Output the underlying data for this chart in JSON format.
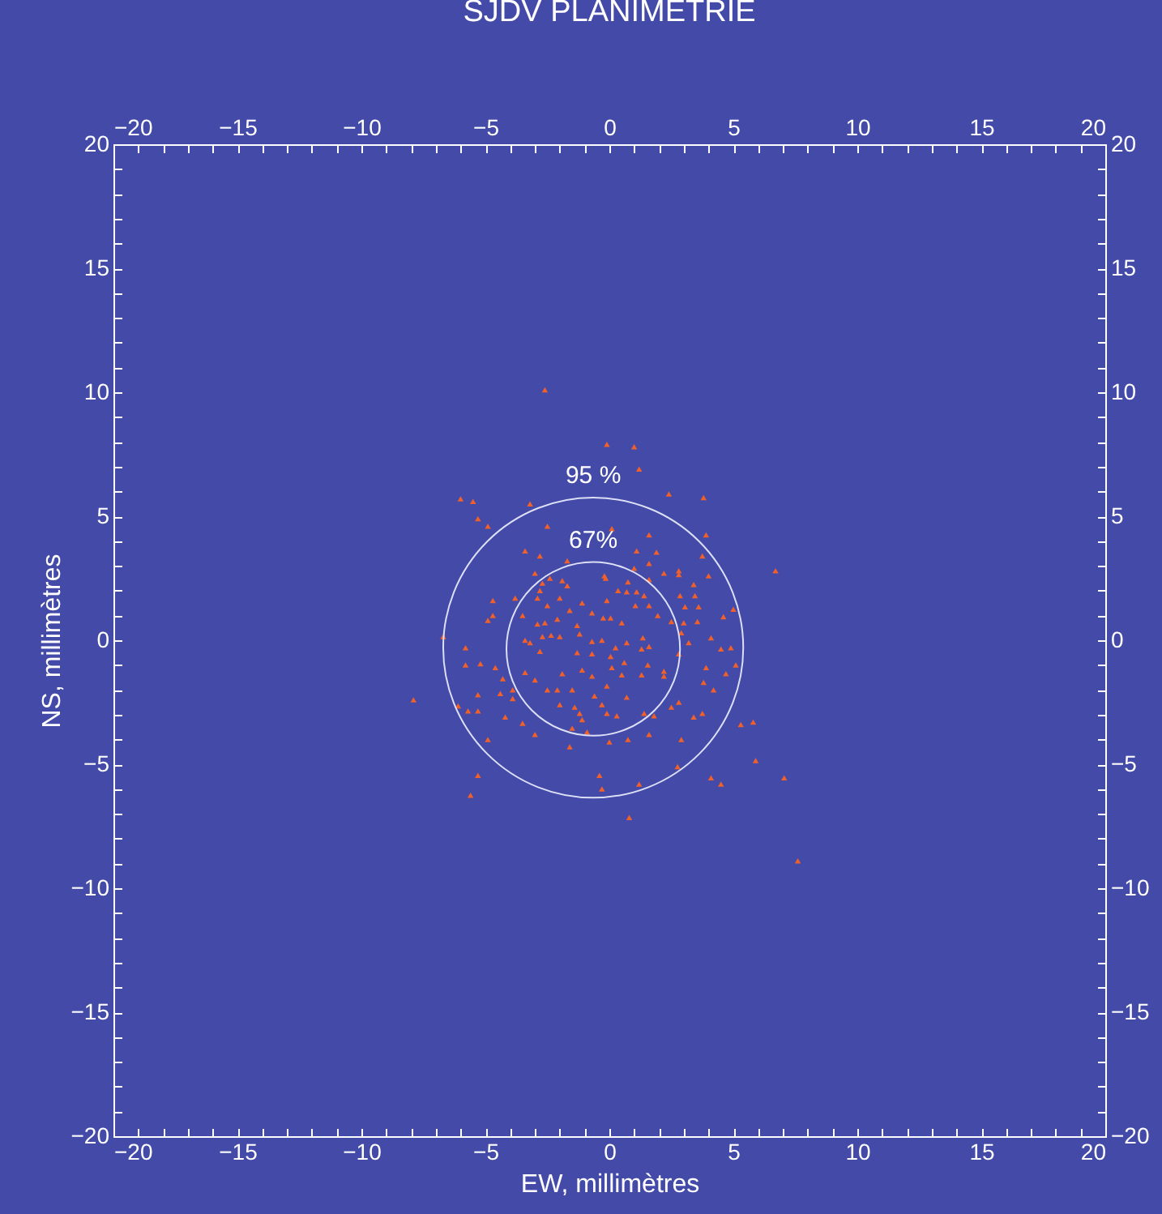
{
  "chart_data": {
    "type": "scatter",
    "title": "SJDV PLANIMETRIE",
    "xlabel": "EW, millimètres",
    "ylabel": "NS, millimètres",
    "marker": "triangle",
    "grid": false,
    "annotations": [
      "95 %",
      "67%"
    ],
    "xlim": [
      -20,
      20
    ],
    "ylim": [
      -20,
      20
    ],
    "x2lim": [
      -20,
      20
    ],
    "y2lim": [
      -20,
      20
    ],
    "xticks": [
      -20,
      {
        "value": -19,
        "label": null
      },
      {
        "value": -18,
        "label": null
      },
      {
        "value": -17,
        "label": null
      },
      {
        "value": -16,
        "label": null
      },
      -15,
      {
        "value": -14,
        "label": null
      },
      {
        "value": -13,
        "label": null
      },
      {
        "value": -12,
        "label": null
      },
      {
        "value": -11,
        "label": null
      },
      -10,
      {
        "value": -9,
        "label": null
      },
      {
        "value": -8,
        "label": null
      },
      {
        "value": -7,
        "label": null
      },
      {
        "value": -6,
        "label": null
      },
      -5,
      {
        "value": -4,
        "label": null
      },
      {
        "value": -3,
        "label": null
      },
      {
        "value": -2,
        "label": null
      },
      {
        "value": -1,
        "label": null
      },
      0,
      {
        "value": 1,
        "label": null
      },
      {
        "value": 2,
        "label": null
      },
      {
        "value": 3,
        "label": null
      },
      {
        "value": 4,
        "label": null
      },
      5,
      {
        "value": 6,
        "label": null
      },
      {
        "value": 7,
        "label": null
      },
      {
        "value": 8,
        "label": null
      },
      {
        "value": 9,
        "label": null
      },
      10,
      {
        "value": 11,
        "label": null
      },
      {
        "value": 12,
        "label": null
      },
      {
        "value": 13,
        "label": null
      },
      {
        "value": 14,
        "label": null
      },
      15,
      {
        "value": 16,
        "label": null
      },
      {
        "value": 17,
        "label": null
      },
      {
        "value": 18,
        "label": null
      },
      {
        "value": 19,
        "label": null
      },
      20
    ],
    "yticks": [
      -20,
      {
        "value": -19,
        "label": null
      },
      {
        "value": -18,
        "label": null
      },
      {
        "value": -17,
        "label": null
      },
      {
        "value": -16,
        "label": null
      },
      -15,
      {
        "value": -14,
        "label": null
      },
      {
        "value": -13,
        "label": null
      },
      {
        "value": -12,
        "label": null
      },
      {
        "value": -11,
        "label": null
      },
      -10,
      {
        "value": -9,
        "label": null
      },
      {
        "value": -8,
        "label": null
      },
      {
        "value": -7,
        "label": null
      },
      {
        "value": -6,
        "label": null
      },
      -5,
      {
        "value": -4,
        "label": null
      },
      {
        "value": -3,
        "label": null
      },
      {
        "value": -2,
        "label": null
      },
      {
        "value": -1,
        "label": null
      },
      0,
      {
        "value": 1,
        "label": null
      },
      {
        "value": 2,
        "label": null
      },
      {
        "value": 3,
        "label": null
      },
      {
        "value": 4,
        "label": null
      },
      5,
      {
        "value": 6,
        "label": null
      },
      {
        "value": 7,
        "label": null
      },
      {
        "value": 8,
        "label": null
      },
      {
        "value": 9,
        "label": null
      },
      10,
      {
        "value": 11,
        "label": null
      },
      {
        "value": 12,
        "label": null
      },
      {
        "value": 13,
        "label": null
      },
      {
        "value": 14,
        "label": null
      },
      15,
      {
        "value": 16,
        "label": null
      },
      {
        "value": 17,
        "label": null
      },
      {
        "value": 18,
        "label": null
      },
      {
        "value": 19,
        "label": null
      },
      20
    ],
    "x2ticks": [
      -20,
      {
        "value": -19,
        "label": null
      },
      {
        "value": -18,
        "label": null
      },
      {
        "value": -17,
        "label": null
      },
      {
        "value": -16,
        "label": null
      },
      -15,
      {
        "value": -14,
        "label": null
      },
      {
        "value": -13,
        "label": null
      },
      {
        "value": -12,
        "label": null
      },
      {
        "value": -11,
        "label": null
      },
      -10,
      {
        "value": -9,
        "label": null
      },
      {
        "value": -8,
        "label": null
      },
      {
        "value": -7,
        "label": null
      },
      {
        "value": -6,
        "label": null
      },
      -5,
      {
        "value": -4,
        "label": null
      },
      {
        "value": -3,
        "label": null
      },
      {
        "value": -2,
        "label": null
      },
      {
        "value": -1,
        "label": null
      },
      0,
      {
        "value": 1,
        "label": null
      },
      {
        "value": 2,
        "label": null
      },
      {
        "value": 3,
        "label": null
      },
      {
        "value": 4,
        "label": null
      },
      5,
      {
        "value": 6,
        "label": null
      },
      {
        "value": 7,
        "label": null
      },
      {
        "value": 8,
        "label": null
      },
      {
        "value": 9,
        "label": null
      },
      10,
      {
        "value": 11,
        "label": null
      },
      {
        "value": 12,
        "label": null
      },
      {
        "value": 13,
        "label": null
      },
      {
        "value": 14,
        "label": null
      },
      15,
      {
        "value": 16,
        "label": null
      },
      {
        "value": 17,
        "label": null
      },
      {
        "value": 18,
        "label": null
      },
      {
        "value": 19,
        "label": null
      },
      20
    ],
    "y2ticks": [
      -20,
      {
        "value": -19,
        "label": null
      },
      {
        "value": -18,
        "label": null
      },
      {
        "value": -17,
        "label": null
      },
      {
        "value": -16,
        "label": null
      },
      -15,
      {
        "value": -14,
        "label": null
      },
      {
        "value": -13,
        "label": null
      },
      {
        "value": -12,
        "label": null
      },
      {
        "value": -11,
        "label": null
      },
      -10,
      {
        "value": -9,
        "label": null
      },
      {
        "value": -8,
        "label": null
      },
      {
        "value": -7,
        "label": null
      },
      {
        "value": -6,
        "label": null
      },
      -5,
      {
        "value": -4,
        "label": null
      },
      {
        "value": -3,
        "label": null
      },
      {
        "value": -2,
        "label": null
      },
      {
        "value": -1,
        "label": null
      },
      0,
      {
        "value": 1,
        "label": null
      },
      {
        "value": 2,
        "label": null
      },
      {
        "value": 3,
        "label": null
      },
      {
        "value": 4,
        "label": null
      },
      5,
      {
        "value": 6,
        "label": null
      },
      {
        "value": 7,
        "label": null
      },
      {
        "value": 8,
        "label": null
      },
      {
        "value": 9,
        "label": null
      },
      10,
      {
        "value": 11,
        "label": null
      },
      {
        "value": 12,
        "label": null
      },
      {
        "value": 13,
        "label": null
      },
      {
        "value": 14,
        "label": null
      },
      15,
      {
        "value": 16,
        "label": null
      },
      {
        "value": 17,
        "label": null
      },
      {
        "value": 18,
        "label": null
      },
      {
        "value": 19,
        "label": null
      },
      20
    ],
    "series": [
      {
        "color": "#f0602a",
        "x": [
          -2.6,
          -0.1,
          -6.0,
          -5.5,
          -5.3,
          -4.9,
          -3.2,
          -2.5,
          -3.4,
          -2.8,
          -1.7,
          -3.0,
          -2.4,
          -2.7,
          -1.9,
          -1.7,
          -0.15,
          -2.8,
          -3.8,
          -2.9,
          -2.0,
          -1.1,
          -0.1,
          -4.7,
          -4.7,
          -4.9,
          -3.5,
          -2.9,
          -2.6,
          -2.1,
          -1.6,
          -1.3,
          -0.7,
          -0.25,
          -3.4,
          -2.7,
          -2.35,
          -2.0,
          -0.7,
          -0.3,
          -6.7,
          -2.5,
          1.0,
          1.2,
          2.4,
          3.8,
          0.1,
          1.6,
          3.9,
          1.1,
          1.9,
          3.75,
          1.6,
          1.0,
          2.8,
          6.7,
          -0.2,
          2.2,
          2.8,
          4.0,
          1.6,
          0.75,
          3.4,
          0.35,
          0.7,
          1.1,
          1.4,
          2.85,
          3.45,
          1.6,
          1.05,
          3.05,
          3.6,
          5.0,
          1.95,
          2.5,
          0.05,
          0.5,
          3.0,
          3.55,
          4.6,
          1.35,
          2.9,
          4.1,
          0.7,
          3.2,
          -5.8,
          -5.8,
          -5.2,
          -4.6,
          -4.3,
          -3.2,
          -2.8,
          -1.2,
          -1.3,
          -0.7,
          0.05,
          -3.4,
          -3.0,
          -1.9,
          -1.1,
          -0.7,
          -0.1,
          -7.9,
          -6.1,
          -5.7,
          -5.3,
          -5.3,
          -4.4,
          -3.9,
          -3.9,
          -2.5,
          -2.1,
          -1.5,
          -2.0,
          -1.4,
          -0.6,
          -0.3,
          -0.1,
          -4.2,
          -3.5,
          -1.2,
          -1.1,
          -1.5,
          -0.9,
          -3.0,
          -4.9,
          -1.6,
          0.0,
          -5.3,
          -0.4,
          -0.3,
          -5.6,
          0.25,
          0.6,
          1.6,
          1.3,
          2.8,
          4.5,
          4.9,
          0.1,
          0.5,
          1.3,
          1.55,
          2.2,
          2.2,
          3.9,
          4.7,
          5.1,
          3.8,
          4.2,
          0.7,
          0.3,
          1.4,
          1.8,
          2.5,
          2.8,
          3.4,
          3.75,
          5.3,
          5.8,
          0.75,
          1.6,
          2.9,
          2.75,
          5.9,
          4.1,
          4.5,
          7.05,
          1.2,
          0.8,
          7.6
        ],
        "values": [
          10.1,
          7.9,
          5.7,
          5.6,
          4.9,
          4.6,
          5.5,
          4.6,
          3.6,
          3.4,
          3.2,
          2.7,
          2.5,
          2.3,
          2.4,
          2.2,
          2.5,
          2.0,
          1.7,
          1.7,
          1.7,
          1.5,
          1.6,
          1.6,
          1.0,
          0.8,
          1.0,
          0.65,
          0.7,
          0.85,
          1.2,
          0.6,
          1.1,
          0.9,
          0.0,
          0.15,
          0.2,
          0.15,
          -0.05,
          0.0,
          0.15,
          1.4,
          7.8,
          6.9,
          5.9,
          5.75,
          4.5,
          4.25,
          4.25,
          3.6,
          3.55,
          3.4,
          3.1,
          2.9,
          2.8,
          2.8,
          2.6,
          2.7,
          2.65,
          2.6,
          2.45,
          2.35,
          2.25,
          2.0,
          1.95,
          1.95,
          1.8,
          1.8,
          1.8,
          1.4,
          1.4,
          1.35,
          1.35,
          1.25,
          1.0,
          0.75,
          0.9,
          0.7,
          0.7,
          0.75,
          0.95,
          0.1,
          0.3,
          0.1,
          -0.1,
          -0.1,
          -0.3,
          -1.0,
          -0.95,
          -1.1,
          -1.55,
          -0.1,
          -0.45,
          0.25,
          -0.5,
          -0.55,
          -0.65,
          -1.3,
          -1.6,
          -1.35,
          -1.2,
          -1.45,
          -1.85,
          -2.4,
          -2.65,
          -2.85,
          -2.85,
          -2.2,
          -2.15,
          -2.0,
          -2.35,
          -2.0,
          -2.0,
          -2.0,
          -2.6,
          -2.7,
          -2.25,
          -2.6,
          -2.95,
          -3.1,
          -3.35,
          -2.95,
          -3.2,
          -3.55,
          -3.7,
          -3.8,
          -4.0,
          -4.3,
          -4.1,
          -5.45,
          -5.45,
          -6.0,
          -6.25,
          -0.3,
          -0.9,
          -0.25,
          -0.35,
          -0.55,
          -0.35,
          -0.3,
          -1.1,
          -1.4,
          -1.4,
          -1.0,
          -1.25,
          -1.45,
          -1.1,
          -1.35,
          -1.0,
          -1.7,
          -2.0,
          -2.3,
          -3.05,
          -2.95,
          -3.05,
          -2.7,
          -2.5,
          -3.1,
          -2.95,
          -3.4,
          -3.3,
          -4.0,
          -3.8,
          -4.0,
          -5.1,
          -4.85,
          -5.55,
          -5.8,
          -5.55,
          -5.8,
          -7.15,
          -8.9
        ]
      }
    ]
  }
}
